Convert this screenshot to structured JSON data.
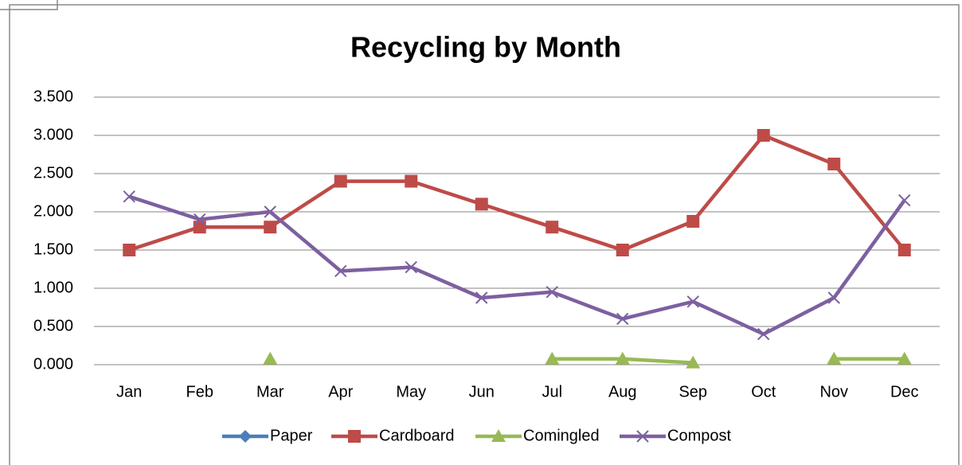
{
  "chart_data": {
    "type": "line",
    "title": "Recycling by Month",
    "categories": [
      "Jan",
      "Feb",
      "Mar",
      "Apr",
      "May",
      "Jun",
      "Jul",
      "Aug",
      "Sep",
      "Oct",
      "Nov",
      "Dec"
    ],
    "series": [
      {
        "name": "Paper",
        "color": "#4a7ebb",
        "marker": "diamond",
        "values": [
          null,
          null,
          null,
          null,
          null,
          null,
          null,
          null,
          null,
          null,
          null,
          null
        ]
      },
      {
        "name": "Cardboard",
        "color": "#be4b48",
        "marker": "square",
        "values": [
          1.5,
          1.8,
          1.8,
          2.4,
          2.4,
          2.1,
          1.8,
          1.5,
          1.875,
          3.0,
          2.625,
          1.5
        ]
      },
      {
        "name": "Comingled",
        "color": "#98b954",
        "marker": "triangle",
        "values": [
          null,
          null,
          0.075,
          null,
          null,
          null,
          0.075,
          0.075,
          0.025,
          null,
          0.075,
          0.075
        ]
      },
      {
        "name": "Compost",
        "color": "#7d60a0",
        "marker": "x",
        "values": [
          2.2,
          1.9,
          2.0,
          1.225,
          1.275,
          0.875,
          0.95,
          0.6,
          0.825,
          0.4,
          0.875,
          2.15
        ]
      }
    ],
    "ylim": [
      0,
      3.5
    ],
    "yticks": [
      {
        "value": 0,
        "label": "0.000"
      },
      {
        "value": 0.5,
        "label": "0.500"
      },
      {
        "value": 1,
        "label": "1.000"
      },
      {
        "value": 1.5,
        "label": "1.500"
      },
      {
        "value": 2,
        "label": "2.000"
      },
      {
        "value": 2.5,
        "label": "2.500"
      },
      {
        "value": 3,
        "label": "3.000"
      },
      {
        "value": 3.5,
        "label": "3.500"
      }
    ],
    "grid": true,
    "legend": "bottom"
  }
}
